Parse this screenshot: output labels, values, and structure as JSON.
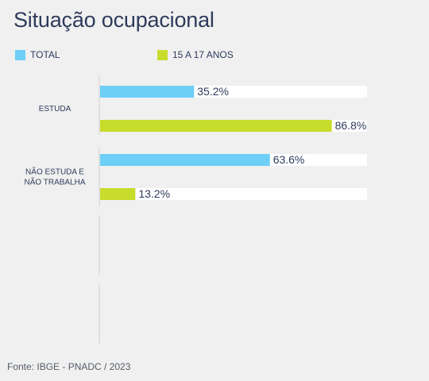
{
  "title": "Situação ocupacional",
  "source": "Fonte: IBGE - PNADC / 2023",
  "legend": [
    {
      "label": "TOTAL",
      "color": "#6dcff6"
    },
    {
      "label": "15 A 17 ANOS",
      "color": "#c8dc2c"
    }
  ],
  "chart_data": {
    "type": "bar",
    "orientation": "horizontal",
    "categories": [
      "ESTUDA",
      "NÃO ESTUDA E\nNÃO TRABALHA"
    ],
    "series": [
      {
        "name": "TOTAL",
        "color": "#6dcff6",
        "values": [
          35.2,
          63.6
        ]
      },
      {
        "name": "15 A 17 ANOS",
        "color": "#c8dc2c",
        "values": [
          86.8,
          13.2
        ]
      }
    ],
    "value_suffix": "%",
    "xlim": [
      0,
      100
    ],
    "grid": false,
    "legend_position": "top-left"
  }
}
